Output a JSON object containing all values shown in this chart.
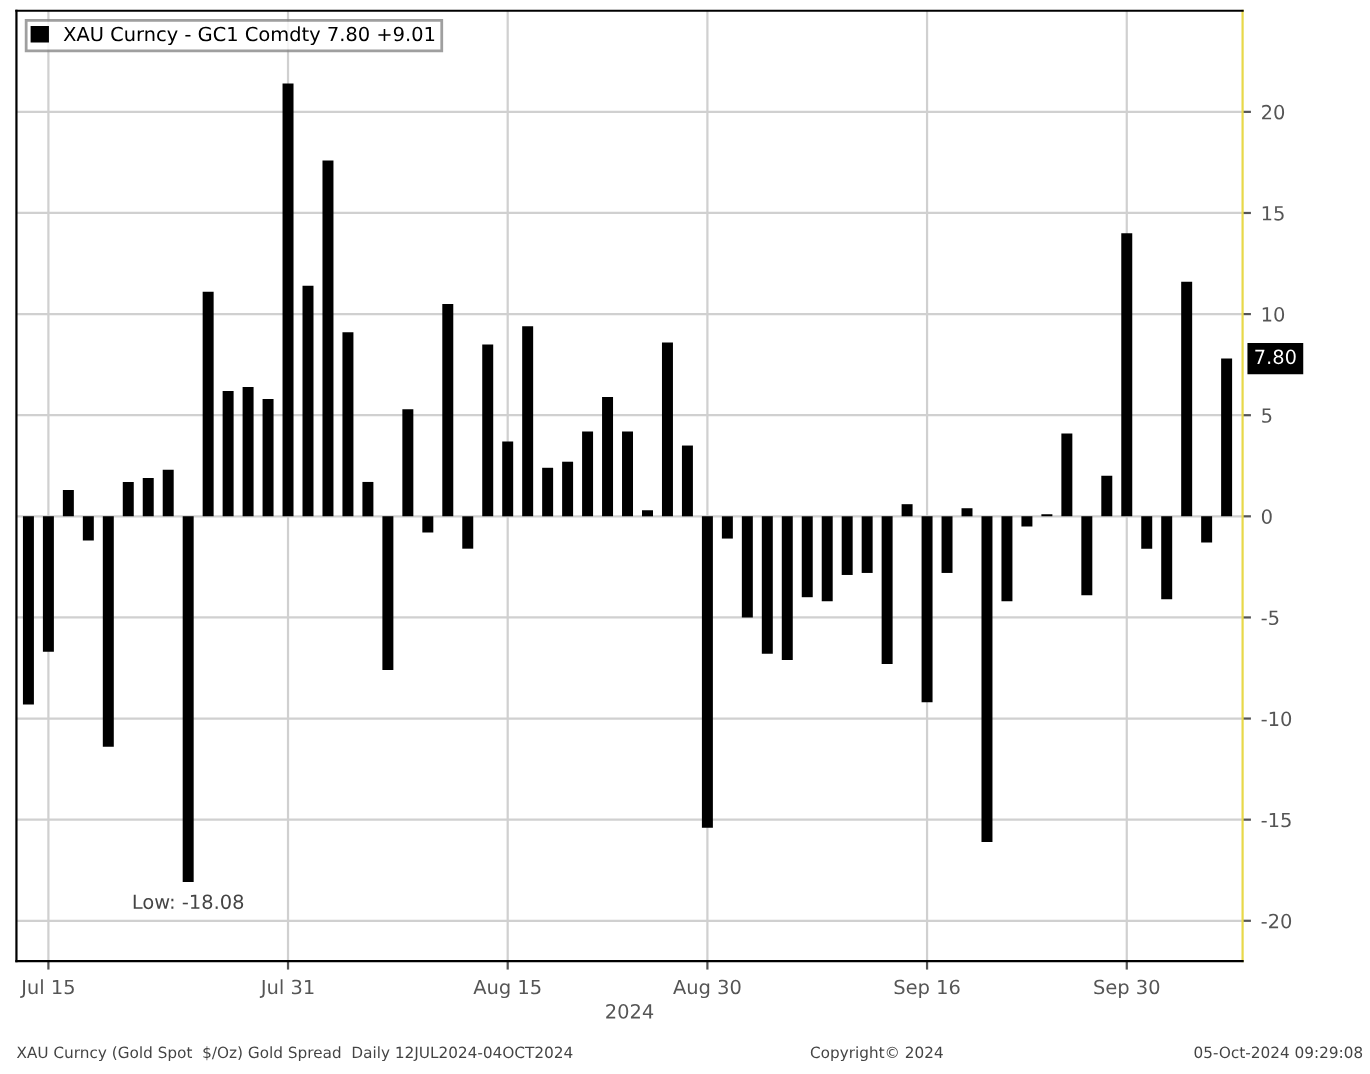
{
  "chart_data": {
    "type": "bar",
    "xlabel": "2024",
    "categories": [
      null,
      "Jul 15",
      null,
      null,
      null,
      null,
      null,
      null,
      null,
      null,
      null,
      null,
      null,
      "Jul 31",
      null,
      null,
      null,
      null,
      null,
      null,
      null,
      null,
      null,
      null,
      "Aug 15",
      null,
      null,
      null,
      null,
      null,
      null,
      null,
      null,
      null,
      "Aug 30",
      null,
      null,
      null,
      null,
      null,
      null,
      null,
      null,
      null,
      null,
      "Sep 16",
      null,
      null,
      null,
      null,
      null,
      null,
      null,
      null,
      null,
      "Sep 30",
      null,
      null,
      null,
      null,
      null
    ],
    "series": [
      {
        "name": "XAU Curncy - GC1 Comdty 7.80 +9.01",
        "color": "#000000",
        "values": [
          -9.3,
          -6.7,
          1.3,
          -1.2,
          -11.4,
          1.7,
          1.9,
          2.3,
          -18.08,
          11.1,
          6.2,
          6.4,
          5.8,
          21.4,
          11.4,
          17.6,
          9.1,
          1.7,
          -7.6,
          5.3,
          -0.8,
          10.5,
          -1.6,
          8.5,
          3.7,
          9.4,
          2.4,
          2.7,
          4.2,
          5.9,
          4.2,
          0.3,
          8.6,
          3.5,
          -15.4,
          -1.1,
          -5.0,
          -6.8,
          -7.1,
          -4.0,
          -4.2,
          -2.9,
          -2.8,
          -7.3,
          0.6,
          -9.2,
          -2.8,
          0.4,
          -16.1,
          -4.2,
          -0.5,
          0.1,
          4.1,
          -3.9,
          2.0,
          14.0,
          -1.6,
          -4.1,
          11.6,
          -1.3,
          7.8
        ],
        "value_labels": [
          null,
          null,
          null,
          null,
          null,
          null,
          null,
          null,
          "Low: -18.08",
          null,
          null,
          null,
          null,
          null,
          null,
          null,
          null,
          null,
          null,
          null,
          null,
          null,
          null,
          null,
          null,
          null,
          null,
          null,
          null,
          null,
          null,
          null,
          null,
          null,
          null,
          null,
          null,
          null,
          null,
          null,
          null,
          null,
          null,
          null,
          null,
          null,
          null,
          null,
          null,
          null,
          null,
          null,
          null,
          null,
          null,
          null,
          null,
          null,
          null,
          null,
          null
        ]
      }
    ],
    "ylim": [
      -22,
      25
    ],
    "yticks": [
      -20,
      -15,
      -10,
      -5,
      0,
      5,
      10,
      15,
      20
    ],
    "grid": true,
    "legend": "top left",
    "annotations": [
      "7.80",
      "XAU Curncy (Gold Spot  $/Oz) Gold Spread  Daily 12JUL2024-04OCT2024",
      "Copyright© 2024",
      "05-Oct-2024 09:29:08"
    ]
  }
}
